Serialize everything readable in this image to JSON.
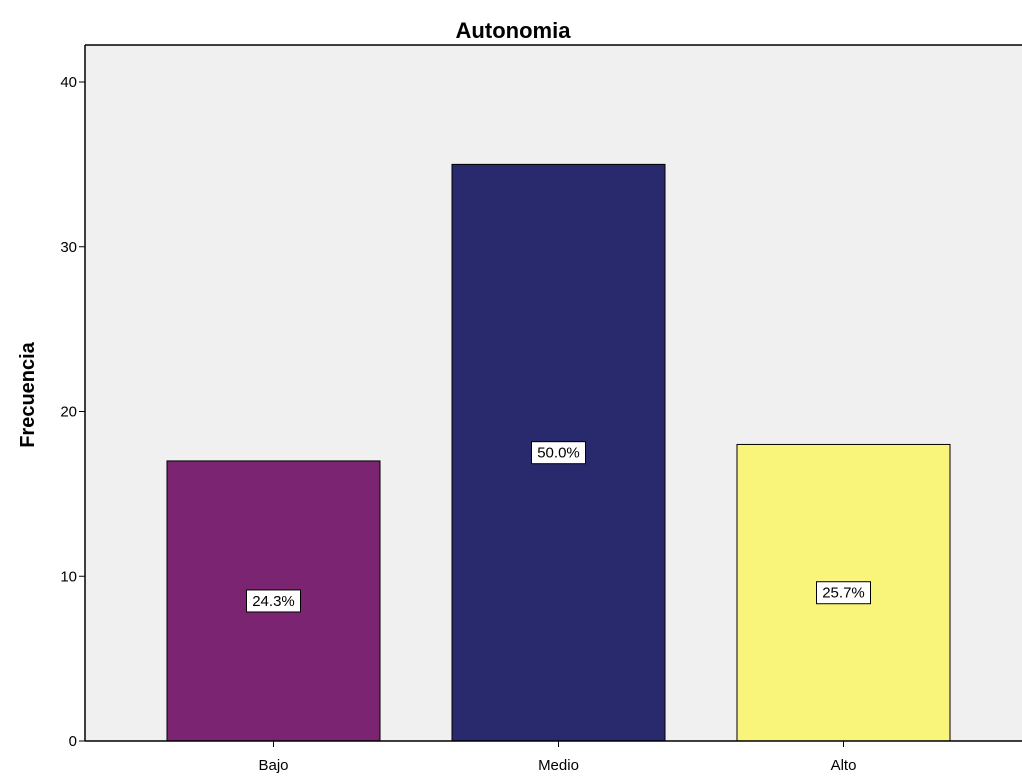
{
  "chart_data": {
    "type": "bar",
    "title": "Autonomia",
    "xlabel": "",
    "ylabel": "Frecuencia",
    "categories": [
      "Bajo",
      "Medio",
      "Alto"
    ],
    "values": [
      17,
      35,
      18
    ],
    "data_labels": [
      "24.3%",
      "50.0%",
      "25.7%"
    ],
    "bar_colors": [
      "#7b2572",
      "#292a6e",
      "#f9f57b"
    ],
    "ylim": [
      0,
      40
    ],
    "yticks": [
      "0",
      "10",
      "20",
      "30",
      "40"
    ],
    "plot_background": "#f0f0f0",
    "grid": false,
    "legend": "none"
  }
}
